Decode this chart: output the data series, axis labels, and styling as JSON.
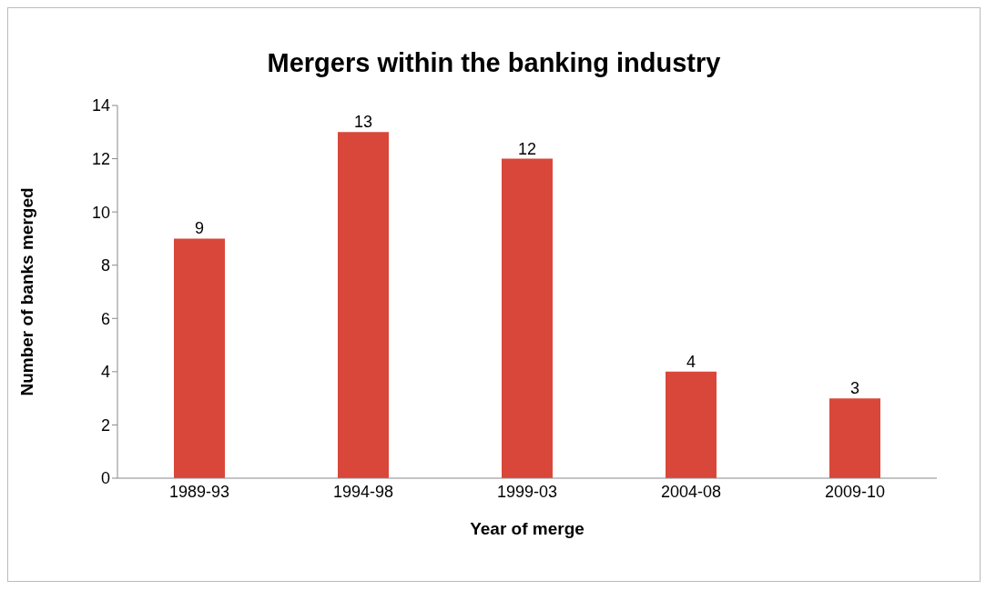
{
  "chart_data": {
    "type": "bar",
    "title": "Mergers within the banking industry",
    "xlabel": "Year of merge",
    "ylabel": "Number of banks merged",
    "categories": [
      "1989-93",
      "1994-98",
      "1999-03",
      "2004-08",
      "2009-10"
    ],
    "values": [
      9,
      13,
      12,
      4,
      3
    ],
    "color": "#d9473a",
    "ylim": [
      0,
      14
    ],
    "yticks": [
      0,
      2,
      4,
      6,
      8,
      10,
      12,
      14
    ],
    "grid": false,
    "data_labels": true
  }
}
